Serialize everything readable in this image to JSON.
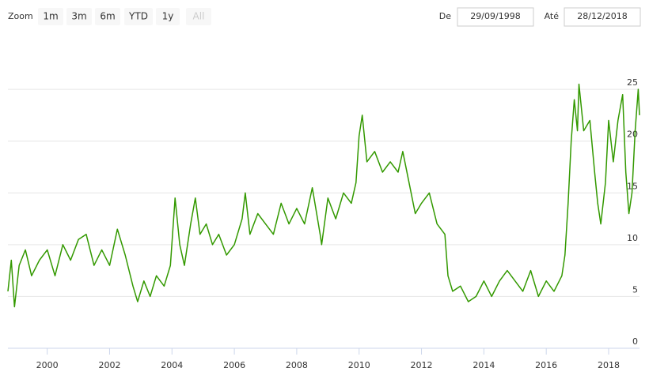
{
  "range_selector": {
    "label": "Zoom",
    "buttons": [
      "1m",
      "3m",
      "6m",
      "YTD",
      "1y",
      "All"
    ],
    "from_label": "De",
    "from": "29/09/1998",
    "to_label": "Até",
    "to": "28/12/2018"
  },
  "chart_data": {
    "type": "line",
    "color": "#339900",
    "grid": true,
    "x": [
      1998.74,
      1998.85,
      1998.95,
      1999.1,
      1999.3,
      1999.5,
      1999.75,
      2000.0,
      2000.25,
      2000.5,
      2000.75,
      2001.0,
      2001.25,
      2001.5,
      2001.75,
      2002.0,
      2002.25,
      2002.5,
      2002.75,
      2002.9,
      2003.1,
      2003.3,
      2003.5,
      2003.75,
      2003.95,
      2004.1,
      2004.25,
      2004.4,
      2004.6,
      2004.75,
      2004.9,
      2005.1,
      2005.3,
      2005.5,
      2005.75,
      2006.0,
      2006.25,
      2006.35,
      2006.5,
      2006.75,
      2007.0,
      2007.25,
      2007.5,
      2007.75,
      2008.0,
      2008.25,
      2008.5,
      2008.75,
      2008.8,
      2009.0,
      2009.25,
      2009.5,
      2009.75,
      2009.9,
      2010.0,
      2010.1,
      2010.25,
      2010.5,
      2010.75,
      2011.0,
      2011.25,
      2011.4,
      2011.6,
      2011.8,
      2012.0,
      2012.25,
      2012.5,
      2012.75,
      2012.85,
      2013.0,
      2013.25,
      2013.5,
      2013.75,
      2014.0,
      2014.25,
      2014.5,
      2014.75,
      2015.0,
      2015.25,
      2015.5,
      2015.75,
      2016.0,
      2016.25,
      2016.5,
      2016.6,
      2016.7,
      2016.8,
      2016.9,
      2017.0,
      2017.05,
      2017.2,
      2017.4,
      2017.55,
      2017.65,
      2017.75,
      2017.9,
      2018.0,
      2018.15,
      2018.3,
      2018.45,
      2018.55,
      2018.65,
      2018.75,
      2018.85,
      2018.95,
      2018.99
    ],
    "values": [
      5.5,
      8.5,
      4,
      8,
      9.5,
      7,
      8.5,
      9.5,
      7,
      10,
      8.5,
      10.5,
      11,
      8,
      9.5,
      8,
      11.5,
      9,
      6,
      4.5,
      6.5,
      5,
      7,
      6,
      8,
      14.5,
      10,
      8,
      12,
      14.5,
      11,
      12,
      10,
      11,
      9,
      10,
      12.5,
      15,
      11,
      13,
      12,
      11,
      14,
      12,
      13.5,
      12,
      15.5,
      11,
      10,
      14.5,
      12.5,
      15,
      14,
      16,
      20.5,
      22.5,
      18,
      19,
      17,
      18,
      17,
      19,
      16,
      13,
      14,
      15,
      12,
      11,
      7,
      5.5,
      6,
      4.5,
      5,
      6.5,
      5,
      6.5,
      7.5,
      6.5,
      5.5,
      7.5,
      5,
      6.5,
      5.5,
      7,
      9,
      14,
      20,
      24,
      21,
      25.5,
      21,
      22,
      17,
      14,
      12,
      16,
      22,
      18,
      22,
      24.5,
      17,
      13,
      15,
      21,
      25,
      22.5
    ],
    "xlim": [
      1998.74,
      2018.99
    ],
    "xticks": [
      2000,
      2002,
      2004,
      2006,
      2008,
      2010,
      2012,
      2014,
      2016,
      2018
    ],
    "ylim": [
      0,
      26
    ],
    "yticks": [
      0,
      5,
      10,
      15,
      20,
      25
    ]
  }
}
